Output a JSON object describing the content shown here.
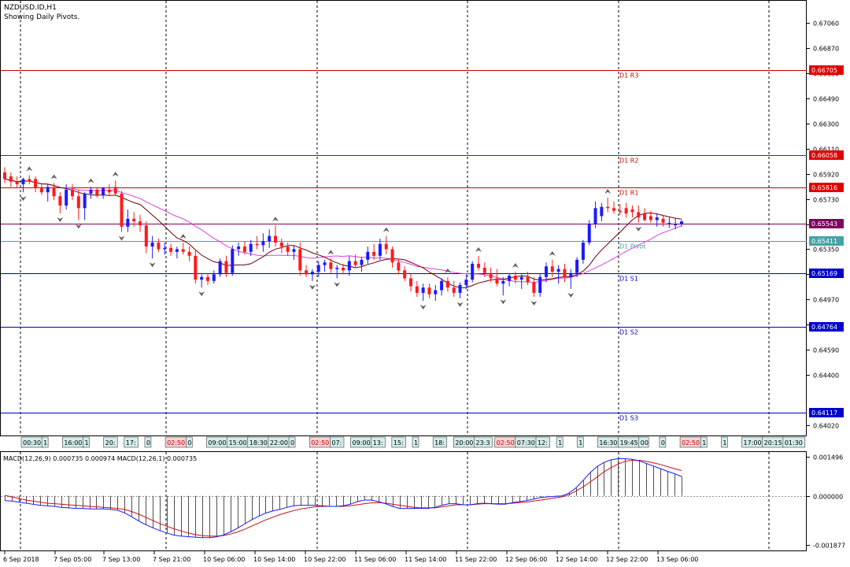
{
  "header": {
    "symbol_line": "NZDUSD.ID,H1",
    "subtitle": "Showing Daily Pivots."
  },
  "macd_label": "MACD(12,26,9) 0.000735 0.000974 MACD(12,26,1) 0.000735",
  "colors": {
    "bull_candle": "#1a1aff",
    "bear_candle": "#ff1a1a",
    "resistance_line": "#cc0000",
    "support_line": "#0000cc",
    "pivot_line": "#44a4a4",
    "current_price_line": "#800060",
    "ma_fast": "#6b0000",
    "ma_slow": "#e040e0",
    "macd_line": "#1a1aff",
    "signal_line": "#cc1010",
    "histogram": "#505050",
    "grid": "#000000",
    "label_resistance_bg": "#e00000",
    "label_support_bg": "#0000d0",
    "label_pivot_bg": "#44a4a4",
    "label_current_bg": "#800060"
  },
  "chart_data": {
    "type": "candlestick",
    "price_axis": {
      "ticks": [
        "0.67060",
        "0.66870",
        "0.66680",
        "0.66490",
        "0.66300",
        "0.66110",
        "0.65920",
        "0.65730",
        "0.65540",
        "0.65350",
        "0.65160",
        "0.64970",
        "0.64780",
        "0.64590",
        "0.64400",
        "0.64020"
      ],
      "ylim": [
        0.6387,
        0.672
      ]
    },
    "time_axis": {
      "labels": [
        "6 Sep 2018",
        "7 Sep 05:00",
        "7 Sep 13:00",
        "7 Sep 21:00",
        "10 Sep 06:00",
        "10 Sep 14:00",
        "10 Sep 22:00",
        "11 Sep 06:00",
        "11 Sep 14:00",
        "11 Sep 22:00",
        "12 Sep 06:00",
        "12 Sep 14:00",
        "12 Sep 22:00",
        "13 Sep 06:00"
      ]
    },
    "pivot_levels": [
      {
        "name": "D1 R3",
        "value": 0.66705,
        "label": "0.66705",
        "kind": "resistance"
      },
      {
        "name": "D1 R2",
        "value": 0.66058,
        "label": "0.66058",
        "kind": "resistance"
      },
      {
        "name": "D1 R1",
        "value": 0.65816,
        "label": "0.65816",
        "kind": "resistance"
      },
      {
        "name": "D1 Pivot",
        "value": 0.65411,
        "label": "0.65411",
        "kind": "pivot"
      },
      {
        "name": "D1 S1",
        "value": 0.65169,
        "label": "0.65169",
        "kind": "support"
      },
      {
        "name": "D1 S2",
        "value": 0.64764,
        "label": "0.64764",
        "kind": "support"
      },
      {
        "name": "D1 S3",
        "value": 0.64117,
        "label": "0.64117",
        "kind": "support"
      }
    ],
    "current_price": {
      "value": 0.65543,
      "label": "0.65543"
    },
    "candles": [
      {
        "o": 0.6593,
        "h": 0.6597,
        "l": 0.6585,
        "c": 0.6588
      },
      {
        "o": 0.659,
        "h": 0.6593,
        "l": 0.6582,
        "c": 0.6586
      },
      {
        "o": 0.6586,
        "h": 0.659,
        "l": 0.6581,
        "c": 0.6584
      },
      {
        "o": 0.6584,
        "h": 0.6589,
        "l": 0.6578,
        "c": 0.6588
      },
      {
        "o": 0.6588,
        "h": 0.6591,
        "l": 0.6584,
        "c": 0.6586
      },
      {
        "o": 0.6588,
        "h": 0.659,
        "l": 0.6578,
        "c": 0.6581
      },
      {
        "o": 0.6581,
        "h": 0.6584,
        "l": 0.6576,
        "c": 0.6578
      },
      {
        "o": 0.6578,
        "h": 0.6584,
        "l": 0.6571,
        "c": 0.6582
      },
      {
        "o": 0.6582,
        "h": 0.6585,
        "l": 0.6572,
        "c": 0.6575
      },
      {
        "o": 0.6575,
        "h": 0.6578,
        "l": 0.6562,
        "c": 0.6568
      },
      {
        "o": 0.6568,
        "h": 0.6584,
        "l": 0.6565,
        "c": 0.658
      },
      {
        "o": 0.658,
        "h": 0.6584,
        "l": 0.6572,
        "c": 0.6575
      },
      {
        "o": 0.6575,
        "h": 0.658,
        "l": 0.6557,
        "c": 0.6566
      },
      {
        "o": 0.6566,
        "h": 0.6578,
        "l": 0.6557,
        "c": 0.6577
      },
      {
        "o": 0.6577,
        "h": 0.6582,
        "l": 0.6573,
        "c": 0.658
      },
      {
        "o": 0.658,
        "h": 0.6582,
        "l": 0.6574,
        "c": 0.6576
      },
      {
        "o": 0.6576,
        "h": 0.6582,
        "l": 0.6573,
        "c": 0.6581
      },
      {
        "o": 0.658,
        "h": 0.6584,
        "l": 0.6576,
        "c": 0.6578
      },
      {
        "o": 0.6582,
        "h": 0.6587,
        "l": 0.6576,
        "c": 0.6577
      },
      {
        "o": 0.6577,
        "h": 0.6579,
        "l": 0.6548,
        "c": 0.6552
      },
      {
        "o": 0.6552,
        "h": 0.6565,
        "l": 0.6548,
        "c": 0.6558
      },
      {
        "o": 0.6558,
        "h": 0.6563,
        "l": 0.6552,
        "c": 0.6556
      },
      {
        "o": 0.6556,
        "h": 0.6561,
        "l": 0.6548,
        "c": 0.6553
      },
      {
        "o": 0.6553,
        "h": 0.6556,
        "l": 0.6532,
        "c": 0.6537
      },
      {
        "o": 0.6537,
        "h": 0.6545,
        "l": 0.6528,
        "c": 0.654
      },
      {
        "o": 0.654,
        "h": 0.6543,
        "l": 0.6533,
        "c": 0.6535
      },
      {
        "o": 0.6535,
        "h": 0.654,
        "l": 0.6531,
        "c": 0.6536
      },
      {
        "o": 0.6536,
        "h": 0.6539,
        "l": 0.653,
        "c": 0.6533
      },
      {
        "o": 0.6533,
        "h": 0.6537,
        "l": 0.6528,
        "c": 0.6535
      },
      {
        "o": 0.6535,
        "h": 0.654,
        "l": 0.6531,
        "c": 0.6533
      },
      {
        "o": 0.6533,
        "h": 0.6537,
        "l": 0.6526,
        "c": 0.653
      },
      {
        "o": 0.653,
        "h": 0.6534,
        "l": 0.6509,
        "c": 0.6512
      },
      {
        "o": 0.6512,
        "h": 0.6516,
        "l": 0.6506,
        "c": 0.6514
      },
      {
        "o": 0.6514,
        "h": 0.6517,
        "l": 0.6508,
        "c": 0.6511
      },
      {
        "o": 0.6511,
        "h": 0.6519,
        "l": 0.6509,
        "c": 0.6516
      },
      {
        "o": 0.6516,
        "h": 0.6528,
        "l": 0.6514,
        "c": 0.6526
      },
      {
        "o": 0.6526,
        "h": 0.653,
        "l": 0.6514,
        "c": 0.6517
      },
      {
        "o": 0.6517,
        "h": 0.6538,
        "l": 0.6515,
        "c": 0.6535
      },
      {
        "o": 0.6535,
        "h": 0.654,
        "l": 0.653,
        "c": 0.6537
      },
      {
        "o": 0.6537,
        "h": 0.6541,
        "l": 0.6531,
        "c": 0.6533
      },
      {
        "o": 0.6533,
        "h": 0.6542,
        "l": 0.653,
        "c": 0.6539
      },
      {
        "o": 0.6539,
        "h": 0.6545,
        "l": 0.6535,
        "c": 0.6538
      },
      {
        "o": 0.6538,
        "h": 0.6547,
        "l": 0.6533,
        "c": 0.6541
      },
      {
        "o": 0.6541,
        "h": 0.655,
        "l": 0.6536,
        "c": 0.6545
      },
      {
        "o": 0.6545,
        "h": 0.6553,
        "l": 0.6537,
        "c": 0.654
      },
      {
        "o": 0.654,
        "h": 0.6543,
        "l": 0.6532,
        "c": 0.6537
      },
      {
        "o": 0.6537,
        "h": 0.654,
        "l": 0.653,
        "c": 0.6533
      },
      {
        "o": 0.6533,
        "h": 0.6538,
        "l": 0.6527,
        "c": 0.6535
      },
      {
        "o": 0.6535,
        "h": 0.654,
        "l": 0.6515,
        "c": 0.6519
      },
      {
        "o": 0.6519,
        "h": 0.6523,
        "l": 0.6514,
        "c": 0.6516
      },
      {
        "o": 0.6516,
        "h": 0.652,
        "l": 0.6511,
        "c": 0.6518
      },
      {
        "o": 0.6518,
        "h": 0.6526,
        "l": 0.6514,
        "c": 0.6523
      },
      {
        "o": 0.6523,
        "h": 0.6527,
        "l": 0.6518,
        "c": 0.6525
      },
      {
        "o": 0.6525,
        "h": 0.6528,
        "l": 0.6517,
        "c": 0.652
      },
      {
        "o": 0.652,
        "h": 0.6523,
        "l": 0.6513,
        "c": 0.6521
      },
      {
        "o": 0.6521,
        "h": 0.6524,
        "l": 0.6516,
        "c": 0.6519
      },
      {
        "o": 0.6519,
        "h": 0.653,
        "l": 0.6515,
        "c": 0.6526
      },
      {
        "o": 0.6526,
        "h": 0.6531,
        "l": 0.6521,
        "c": 0.6523
      },
      {
        "o": 0.6523,
        "h": 0.6529,
        "l": 0.6518,
        "c": 0.6527
      },
      {
        "o": 0.6527,
        "h": 0.6537,
        "l": 0.6524,
        "c": 0.6533
      },
      {
        "o": 0.6533,
        "h": 0.6539,
        "l": 0.6527,
        "c": 0.653
      },
      {
        "o": 0.653,
        "h": 0.6543,
        "l": 0.6527,
        "c": 0.6539
      },
      {
        "o": 0.6539,
        "h": 0.6545,
        "l": 0.6531,
        "c": 0.6535
      },
      {
        "o": 0.6535,
        "h": 0.6537,
        "l": 0.6521,
        "c": 0.6525
      },
      {
        "o": 0.6525,
        "h": 0.6528,
        "l": 0.6516,
        "c": 0.6519
      },
      {
        "o": 0.6519,
        "h": 0.6522,
        "l": 0.6511,
        "c": 0.6513
      },
      {
        "o": 0.6513,
        "h": 0.6516,
        "l": 0.6503,
        "c": 0.6507
      },
      {
        "o": 0.6507,
        "h": 0.6511,
        "l": 0.6499,
        "c": 0.6502
      },
      {
        "o": 0.6502,
        "h": 0.6509,
        "l": 0.6496,
        "c": 0.6506
      },
      {
        "o": 0.6506,
        "h": 0.6509,
        "l": 0.6498,
        "c": 0.6501
      },
      {
        "o": 0.6501,
        "h": 0.6508,
        "l": 0.6496,
        "c": 0.6504
      },
      {
        "o": 0.6504,
        "h": 0.6513,
        "l": 0.65,
        "c": 0.6511
      },
      {
        "o": 0.6511,
        "h": 0.6514,
        "l": 0.6503,
        "c": 0.6506
      },
      {
        "o": 0.6506,
        "h": 0.6511,
        "l": 0.6499,
        "c": 0.6502
      },
      {
        "o": 0.6502,
        "h": 0.651,
        "l": 0.6498,
        "c": 0.6508
      },
      {
        "o": 0.6508,
        "h": 0.6516,
        "l": 0.6505,
        "c": 0.6512
      },
      {
        "o": 0.6512,
        "h": 0.6526,
        "l": 0.651,
        "c": 0.6524
      },
      {
        "o": 0.6524,
        "h": 0.653,
        "l": 0.6519,
        "c": 0.6521
      },
      {
        "o": 0.6521,
        "h": 0.6525,
        "l": 0.6514,
        "c": 0.6517
      },
      {
        "o": 0.6517,
        "h": 0.6521,
        "l": 0.651,
        "c": 0.6513
      },
      {
        "o": 0.6513,
        "h": 0.652,
        "l": 0.6507,
        "c": 0.6509
      },
      {
        "o": 0.6509,
        "h": 0.6514,
        "l": 0.65,
        "c": 0.6511
      },
      {
        "o": 0.6511,
        "h": 0.6517,
        "l": 0.6507,
        "c": 0.6515
      },
      {
        "o": 0.6515,
        "h": 0.6518,
        "l": 0.6509,
        "c": 0.6512
      },
      {
        "o": 0.6512,
        "h": 0.6516,
        "l": 0.6505,
        "c": 0.6514
      },
      {
        "o": 0.6514,
        "h": 0.6518,
        "l": 0.6508,
        "c": 0.651
      },
      {
        "o": 0.651,
        "h": 0.6514,
        "l": 0.6499,
        "c": 0.6502
      },
      {
        "o": 0.6502,
        "h": 0.6517,
        "l": 0.6499,
        "c": 0.6514
      },
      {
        "o": 0.6514,
        "h": 0.6525,
        "l": 0.651,
        "c": 0.6522
      },
      {
        "o": 0.6522,
        "h": 0.6527,
        "l": 0.6514,
        "c": 0.6518
      },
      {
        "o": 0.6518,
        "h": 0.6523,
        "l": 0.6509,
        "c": 0.652
      },
      {
        "o": 0.652,
        "h": 0.6524,
        "l": 0.651,
        "c": 0.6514
      },
      {
        "o": 0.6514,
        "h": 0.652,
        "l": 0.6505,
        "c": 0.6517
      },
      {
        "o": 0.6517,
        "h": 0.6529,
        "l": 0.6514,
        "c": 0.6527
      },
      {
        "o": 0.6527,
        "h": 0.6542,
        "l": 0.6524,
        "c": 0.654
      },
      {
        "o": 0.654,
        "h": 0.6557,
        "l": 0.6538,
        "c": 0.6554
      },
      {
        "o": 0.6554,
        "h": 0.6571,
        "l": 0.6551,
        "c": 0.6566
      },
      {
        "o": 0.656,
        "h": 0.657,
        "l": 0.6556,
        "c": 0.6567
      },
      {
        "o": 0.6567,
        "h": 0.6574,
        "l": 0.6563,
        "c": 0.6566
      },
      {
        "o": 0.6566,
        "h": 0.6571,
        "l": 0.6562,
        "c": 0.6564
      },
      {
        "o": 0.6564,
        "h": 0.6569,
        "l": 0.6561,
        "c": 0.6563
      },
      {
        "o": 0.6566,
        "h": 0.657,
        "l": 0.6559,
        "c": 0.6562
      },
      {
        "o": 0.6565,
        "h": 0.6568,
        "l": 0.6559,
        "c": 0.6563
      },
      {
        "o": 0.6563,
        "h": 0.6568,
        "l": 0.6555,
        "c": 0.6559
      },
      {
        "o": 0.6562,
        "h": 0.6566,
        "l": 0.6556,
        "c": 0.6557
      },
      {
        "o": 0.656,
        "h": 0.6564,
        "l": 0.6555,
        "c": 0.6557
      },
      {
        "o": 0.6557,
        "h": 0.6562,
        "l": 0.6552,
        "c": 0.6559
      },
      {
        "o": 0.6558,
        "h": 0.6561,
        "l": 0.6552,
        "c": 0.6555
      },
      {
        "o": 0.6555,
        "h": 0.6559,
        "l": 0.6551,
        "c": 0.6555
      },
      {
        "o": 0.6553,
        "h": 0.6558,
        "l": 0.655,
        "c": 0.6554
      },
      {
        "o": 0.6554,
        "h": 0.6557,
        "l": 0.6552,
        "c": 0.6556
      }
    ],
    "session_labels": [
      "00:30",
      "1",
      "16:00",
      "1",
      "20:",
      "17:",
      "0",
      "02:50",
      "0",
      "09:00",
      "15:00",
      "18:30",
      "22:00",
      "0",
      "02:50",
      "07:",
      "09:00",
      "13:",
      "15:",
      "1",
      "18:",
      "20:00",
      "23:3",
      "02:50",
      "07:30",
      "12:",
      "1",
      "1",
      "16:30",
      "19:45",
      "00",
      "0",
      "02:50",
      "1",
      "1",
      "17:00",
      "20:15",
      "01:30"
    ],
    "macd": {
      "label": "MACD(12,26,9) 0.000735 0.000974 MACD(12,26,1) 0.000735",
      "ticks": [
        "0.001496",
        "0.000000",
        "-0.001877"
      ],
      "ylim": [
        -0.001877,
        0.001496
      ],
      "macd_line": [
        -0.00018,
        -0.0002,
        -0.00024,
        -0.00028,
        -0.00032,
        -0.00036,
        -0.00038,
        -0.0004,
        -0.00044,
        -0.00046,
        -0.00048,
        -0.00048,
        -0.0005,
        -0.0005,
        -0.0005,
        -0.00052,
        -0.00055,
        -0.00065,
        -0.0008,
        -0.00096,
        -0.0011,
        -0.00122,
        -0.00133,
        -0.00142,
        -0.0015,
        -0.00154,
        -0.00156,
        -0.00158,
        -0.0016,
        -0.0016,
        -0.00157,
        -0.0015,
        -0.00138,
        -0.00124,
        -0.00108,
        -0.00092,
        -0.00078,
        -0.00066,
        -0.00058,
        -0.00052,
        -0.00044,
        -0.00038,
        -0.00036,
        -0.00036,
        -0.00036,
        -0.00038,
        -0.0004,
        -0.0004,
        -0.00038,
        -0.00032,
        -0.00022,
        -0.00016,
        -0.00016,
        -0.00022,
        -0.0003,
        -0.0004,
        -0.00048,
        -0.00048,
        -0.00048,
        -0.00048,
        -0.00048,
        -0.00044,
        -0.00036,
        -0.0003,
        -0.0003,
        -0.00034,
        -0.00034,
        -0.0003,
        -0.00028,
        -0.0003,
        -0.00032,
        -0.00032,
        -0.00026,
        -0.00022,
        -0.00018,
        -0.00012,
        -6e-05,
        -4e-05,
        -2e-05,
        0.0,
        0.0001,
        0.0003,
        0.00058,
        0.00088,
        0.00112,
        0.00128,
        0.00138,
        0.00142,
        0.00142,
        0.0014,
        0.00134,
        0.00124,
        0.00114,
        0.00104,
        0.00094,
        0.00085,
        0.00074
      ],
      "signal_line": [
        2e-05,
        -4e-05,
        -0.0001,
        -0.00016,
        -0.0002,
        -0.00024,
        -0.00028,
        -0.0003,
        -0.00032,
        -0.00034,
        -0.00036,
        -0.00038,
        -0.0004,
        -0.00042,
        -0.00044,
        -0.00046,
        -0.00048,
        -0.00052,
        -0.0006,
        -0.0007,
        -0.00082,
        -0.00094,
        -0.00106,
        -0.00116,
        -0.00126,
        -0.00134,
        -0.00142,
        -0.00148,
        -0.00152,
        -0.00154,
        -0.00154,
        -0.00152,
        -0.00146,
        -0.00138,
        -0.00128,
        -0.00116,
        -0.00104,
        -0.00092,
        -0.00082,
        -0.00072,
        -0.00064,
        -0.00056,
        -0.0005,
        -0.00046,
        -0.00042,
        -0.0004,
        -0.0004,
        -0.0004,
        -0.0004,
        -0.00038,
        -0.00034,
        -0.0003,
        -0.00027,
        -0.00026,
        -0.00028,
        -0.00032,
        -0.00036,
        -0.0004,
        -0.00044,
        -0.00046,
        -0.00046,
        -0.00046,
        -0.00042,
        -0.00038,
        -0.00034,
        -0.00034,
        -0.00034,
        -0.00032,
        -0.0003,
        -0.0003,
        -0.0003,
        -0.0003,
        -0.00028,
        -0.00026,
        -0.00024,
        -0.0002,
        -0.00016,
        -0.00012,
        -8e-05,
        -4e-05,
        4e-05,
        0.00018,
        0.00034,
        0.00052,
        0.00072,
        0.00092,
        0.00108,
        0.00122,
        0.00132,
        0.00136,
        0.00136,
        0.00132,
        0.00126,
        0.0012,
        0.00112,
        0.00104,
        0.00097
      ],
      "histogram": [
        -0.00018,
        -0.0002,
        -0.00024,
        -0.00028,
        -0.00032,
        -0.00036,
        -0.00038,
        -0.0004,
        -0.00044,
        -0.00046,
        -0.00048,
        -0.00048,
        -0.0005,
        -0.0005,
        -0.0005,
        -0.00052,
        -0.00055,
        -0.00065,
        -0.0008,
        -0.00096,
        -0.0011,
        -0.00122,
        -0.00133,
        -0.00142,
        -0.0015,
        -0.00154,
        -0.00156,
        -0.00158,
        -0.0016,
        -0.0016,
        -0.00157,
        -0.0015,
        -0.00138,
        -0.00124,
        -0.00108,
        -0.00092,
        -0.00078,
        -0.00066,
        -0.00058,
        -0.00052,
        -0.00044,
        -0.00038,
        -0.00036,
        -0.00036,
        -0.00036,
        -0.00038,
        -0.0004,
        -0.0004,
        -0.00038,
        -0.00032,
        -0.00022,
        -0.00016,
        -0.00016,
        -0.00022,
        -0.0003,
        -0.0004,
        -0.00048,
        -0.00048,
        -0.00048,
        -0.00048,
        -0.00048,
        -0.00044,
        -0.00036,
        -0.0003,
        -0.0003,
        -0.00034,
        -0.00034,
        -0.0003,
        -0.00028,
        -0.0003,
        -0.00032,
        -0.00032,
        -0.00026,
        -0.00022,
        -0.00018,
        -0.00012,
        -6e-05,
        -4e-05,
        -2e-05,
        0.0,
        0.0001,
        0.0003,
        0.00058,
        0.00088,
        0.00112,
        0.00128,
        0.00138,
        0.00142,
        0.00142,
        0.0014,
        0.00134,
        0.00124,
        0.00114,
        0.00104,
        0.00094,
        0.00085,
        0.00074
      ]
    }
  }
}
